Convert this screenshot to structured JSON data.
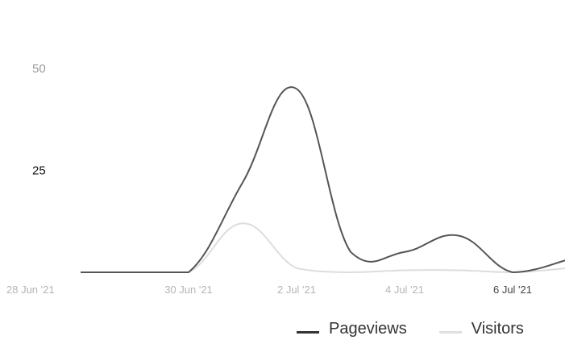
{
  "chart_data": {
    "type": "line",
    "title": "",
    "xlabel": "",
    "ylabel": "",
    "x": [
      "28 Jun '21",
      "29 Jun '21",
      "30 Jun '21",
      "1 Jul '21",
      "2 Jul '21",
      "3 Jul '21",
      "4 Jul '21",
      "5 Jul '21",
      "6 Jul '21",
      "7 Jul '21"
    ],
    "x_tick_labels": [
      "28 Jun '21",
      "30 Jun '21",
      "2 Jul '21",
      "4 Jul '21",
      "6 Jul '21"
    ],
    "y_ticks": [
      25,
      50
    ],
    "ylim": [
      0,
      52
    ],
    "series": [
      {
        "name": "Pageviews",
        "color": "#555555",
        "values": [
          0,
          0,
          0,
          22,
          45,
          5,
          5,
          9,
          0,
          3
        ]
      },
      {
        "name": "Visitors",
        "color": "#dddddd",
        "values": [
          0,
          0,
          0,
          12,
          1,
          0,
          0.5,
          0.5,
          0,
          1
        ]
      }
    ],
    "grid": false,
    "legend": "bottom-right"
  }
}
